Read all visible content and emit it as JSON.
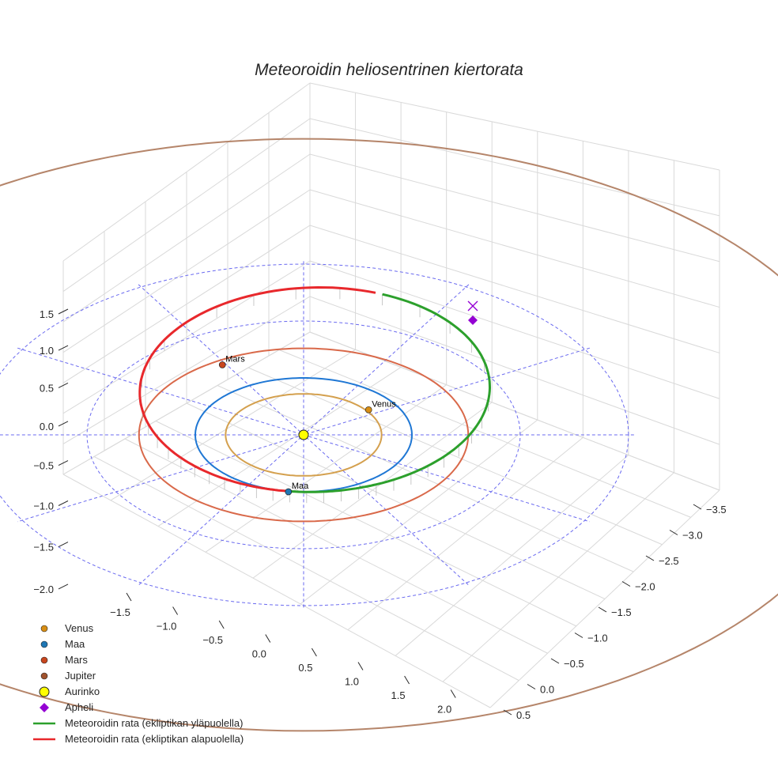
{
  "chart_data": {
    "type": "3d-line",
    "title": "Meteoroidin heliosentrinen kiertorata",
    "axes": {
      "x_ticks": [
        "−1.5",
        "−1.0",
        "−0.5",
        "0.0",
        "0.5",
        "1.0",
        "1.5",
        "2.0"
      ],
      "y_ticks": [
        "−3.5",
        "−3.0",
        "−2.5",
        "−2.0",
        "−1.5",
        "−1.0",
        "−0.5",
        "0.0",
        "0.5"
      ],
      "z_ticks": [
        "1.5",
        "1.0",
        "0.5",
        "0.0",
        "−0.5",
        "−1.0",
        "−1.5",
        "−2.0"
      ],
      "grid": true
    },
    "planets": [
      {
        "name": "Venus",
        "orbit_radius_au": 0.72,
        "label": "Venus",
        "color": "#d4a04e",
        "marker_color": "#d88e14"
      },
      {
        "name": "Maa",
        "orbit_radius_au": 1.0,
        "label": "Maa",
        "color": "#1f77d4",
        "marker_color": "#1f77b4"
      },
      {
        "name": "Mars",
        "orbit_radius_au": 1.52,
        "label": "Mars",
        "color": "#d9694a",
        "marker_color": "#c8461e"
      },
      {
        "name": "Jupiter",
        "orbit_radius_au": 5.2,
        "color": "#b5856a",
        "marker_color": "#a0522d"
      }
    ],
    "sun": {
      "name": "Aurinko",
      "x": 0,
      "y": 0,
      "z": 0,
      "color": "#ffff00"
    },
    "aphelion": {
      "name": "Apheli",
      "color": "#9400d3"
    },
    "meteoroid": {
      "perihelion_au": 1.0,
      "aphelion_au": 2.6,
      "above_label": "Meteoroidin rata (ekliptikan yläpuolella)",
      "below_label": "Meteoroidin rata (ekliptikan alapuolella)",
      "above_color": "#2ca02c",
      "below_color": "#e8282c"
    },
    "reference_circles_au": [
      2,
      3
    ],
    "legend": [
      {
        "label": "Venus",
        "kind": "dot",
        "color": "#d88e14"
      },
      {
        "label": "Maa",
        "kind": "dot",
        "color": "#1f77b4"
      },
      {
        "label": "Mars",
        "kind": "dot",
        "color": "#c8461e"
      },
      {
        "label": "Jupiter",
        "kind": "dot",
        "color": "#a0522d"
      },
      {
        "label": "Aurinko",
        "kind": "sun",
        "color": "#ffff00"
      },
      {
        "label": "Apheli",
        "kind": "diamond",
        "color": "#9400d3"
      },
      {
        "label": "Meteoroidin rata (ekliptikan yläpuolella)",
        "kind": "line",
        "color": "#2ca02c"
      },
      {
        "label": "Meteoroidin rata (ekliptikan alapuolella)",
        "kind": "line",
        "color": "#e8282c"
      }
    ]
  }
}
